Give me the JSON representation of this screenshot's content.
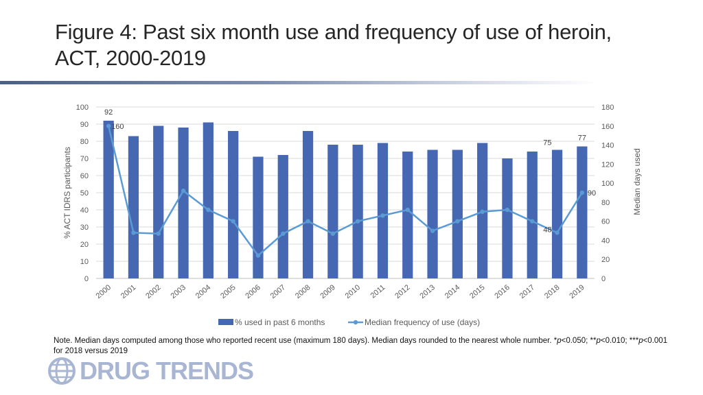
{
  "title": "Figure 4: Past six month use and frequency of use of heroin, ACT, 2000-2019",
  "note": {
    "prefix": "Note. Median days computed among those who reported recent use (maximum 180 days). Median days rounded to the nearest whole number. *",
    "p1": "p",
    "mid1": "<0.050; **",
    "p2": "p",
    "mid2": "<0.010; ***",
    "p3": "p",
    "suffix": "<0.001 for 2018 versus 2019"
  },
  "logo": {
    "text": "DRUG TRENDS"
  },
  "colors": {
    "bar": "#4668b3",
    "line": "#5b9bd5",
    "text": "#595959",
    "grid": "#d9d9d9"
  },
  "chart_data": {
    "type": "bar",
    "categories": [
      "2000",
      "2001",
      "2002",
      "2003",
      "2004",
      "2005",
      "2006",
      "2007",
      "2008",
      "2009",
      "2010",
      "2011",
      "2012",
      "2013",
      "2014",
      "2015",
      "2016",
      "2017",
      "2018",
      "2019"
    ],
    "series": [
      {
        "name": "% used in past 6 months",
        "type": "bar",
        "axis": "left",
        "values": [
          92,
          83,
          89,
          88,
          91,
          86,
          71,
          72,
          86,
          78,
          78,
          79,
          74,
          75,
          75,
          79,
          70,
          74,
          75,
          77
        ]
      },
      {
        "name": "Median frequency of use (days)",
        "type": "line",
        "axis": "right",
        "values": [
          160,
          48,
          47,
          92,
          72,
          60,
          24,
          47,
          60,
          47,
          60,
          66,
          72,
          50,
          60,
          70,
          72,
          60,
          48,
          90
        ]
      }
    ],
    "data_labels": [
      {
        "series": 0,
        "index": 0,
        "text": "92"
      },
      {
        "series": 1,
        "index": 0,
        "text": "160"
      },
      {
        "series": 0,
        "index": 18,
        "text": "75"
      },
      {
        "series": 0,
        "index": 19,
        "text": "77"
      },
      {
        "series": 1,
        "index": 19,
        "text": "90"
      },
      {
        "series": 1,
        "index": 18,
        "text": "48"
      }
    ],
    "ylabel": "% ACT IDRS participants",
    "y2label": "Median days used",
    "ylim": [
      0,
      100
    ],
    "y2lim": [
      0,
      180
    ],
    "yticks": [
      0,
      10,
      20,
      30,
      40,
      50,
      60,
      70,
      80,
      90,
      100
    ],
    "y2ticks": [
      0,
      20,
      40,
      60,
      80,
      100,
      120,
      140,
      160,
      180
    ],
    "legend_position": "bottom",
    "grid": true
  }
}
